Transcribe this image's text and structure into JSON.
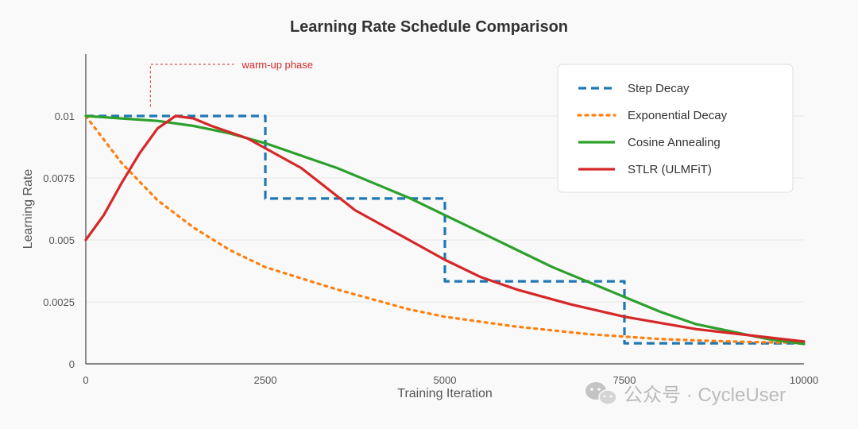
{
  "chart_data": {
    "type": "line",
    "title": "Learning Rate Schedule Comparison",
    "xlabel": "Training Iteration",
    "ylabel": "Learning Rate",
    "xlim": [
      0,
      10000
    ],
    "ylim": [
      0,
      0.0125
    ],
    "x_ticks": [
      0,
      2500,
      5000,
      7500,
      10000
    ],
    "x_tick_labels": [
      "0",
      "2500",
      "5000",
      "7500",
      "10000"
    ],
    "y_ticks": [
      0,
      0.0025,
      0.005,
      0.0075,
      0.01
    ],
    "y_tick_labels": [
      "0",
      "0.0025",
      "0.005",
      "0.0075",
      "0.01"
    ],
    "grid": true,
    "legend_position": "top-right",
    "series": [
      {
        "name": "Step Decay",
        "color": "#1f77b4",
        "style": "dashed",
        "x": [
          0,
          2500,
          2500,
          5000,
          5000,
          7500,
          7500,
          10000
        ],
        "y": [
          0.01,
          0.01,
          0.00667,
          0.00667,
          0.00333,
          0.00333,
          0.00083,
          0.00083
        ]
      },
      {
        "name": "Exponential Decay",
        "color": "#ff7f0e",
        "style": "dotted",
        "x": [
          0,
          500,
          1000,
          1500,
          2000,
          2500,
          3000,
          3500,
          4000,
          4500,
          5000,
          5500,
          6000,
          6500,
          7000,
          7500,
          8000,
          8500,
          9000,
          9500,
          10000
        ],
        "y": [
          0.01,
          0.0081,
          0.0066,
          0.0055,
          0.0046,
          0.0039,
          0.00345,
          0.003,
          0.0026,
          0.0022,
          0.0019,
          0.0017,
          0.0015,
          0.00135,
          0.0012,
          0.0011,
          0.001,
          0.00095,
          0.0009,
          0.00087,
          0.00085
        ]
      },
      {
        "name": "Cosine Annealing",
        "color": "#2ca02c",
        "style": "solid",
        "x": [
          0,
          500,
          1000,
          1500,
          2000,
          2500,
          3000,
          3500,
          4000,
          4500,
          5000,
          5500,
          6000,
          6500,
          7000,
          7500,
          8000,
          8500,
          9000,
          9500,
          10000
        ],
        "y": [
          0.01,
          0.0099,
          0.0098,
          0.0096,
          0.0093,
          0.0089,
          0.0084,
          0.0079,
          0.0073,
          0.0067,
          0.006,
          0.0053,
          0.0046,
          0.0039,
          0.0033,
          0.0027,
          0.0021,
          0.0016,
          0.0013,
          0.001,
          0.0008
        ]
      },
      {
        "name": "STLR (ULMFiT)",
        "color": "#d62728",
        "style": "solid",
        "x": [
          0,
          250,
          500,
          750,
          1000,
          1250,
          1500,
          1750,
          2250,
          2500,
          3000,
          3750,
          4500,
          5000,
          5500,
          6000,
          6750,
          7500,
          8500,
          9250,
          10000
        ],
        "y": [
          0.005,
          0.006,
          0.0073,
          0.0085,
          0.0095,
          0.01,
          0.0099,
          0.0096,
          0.0091,
          0.0087,
          0.0079,
          0.0062,
          0.005,
          0.0042,
          0.0035,
          0.003,
          0.0024,
          0.0019,
          0.0014,
          0.00115,
          0.0009
        ]
      }
    ],
    "annotations": [
      {
        "text": "warm-up phase",
        "color": "#d62728",
        "x": 900,
        "y": 0.0105
      }
    ]
  },
  "watermark": {
    "text": "公众号 · CycleUser"
  }
}
